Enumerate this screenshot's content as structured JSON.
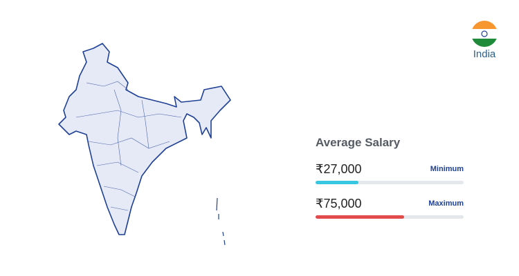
{
  "country": "India",
  "salary": {
    "title": "Average Salary",
    "rows": [
      {
        "amount": "₹27,000",
        "label": "Minimum",
        "fill_percent": 29,
        "color": "#38c6e0"
      },
      {
        "amount": "₹75,000",
        "label": "Maximum",
        "fill_percent": 60,
        "color": "#e24b4b"
      }
    ]
  }
}
